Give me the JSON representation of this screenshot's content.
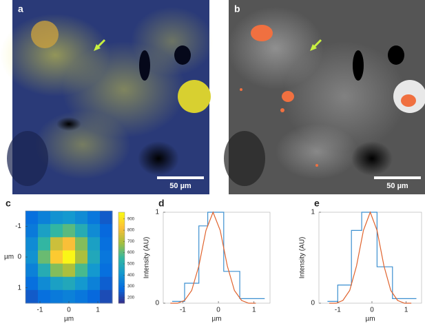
{
  "images": [
    {
      "label": "a",
      "scale_bar": "50 µm"
    },
    {
      "label": "b",
      "scale_bar": "50 µm"
    }
  ],
  "chart_data": [
    {
      "type": "heatmap",
      "label": "c",
      "xlabel": "µm",
      "ylabel": "µm",
      "xlim": [
        -1.5,
        1.5
      ],
      "ylim": [
        1.5,
        -1.5
      ],
      "xticks": [
        -1,
        0,
        1
      ],
      "yticks": [
        -1,
        0,
        1
      ],
      "values": [
        [
          300,
          350,
          400,
          420,
          380,
          320,
          250
        ],
        [
          330,
          450,
          550,
          600,
          500,
          380,
          280
        ],
        [
          380,
          550,
          750,
          820,
          650,
          450,
          300
        ],
        [
          400,
          620,
          850,
          950,
          700,
          480,
          320
        ],
        [
          350,
          500,
          650,
          700,
          580,
          420,
          300
        ],
        [
          300,
          380,
          450,
          480,
          420,
          350,
          260
        ],
        [
          250,
          300,
          330,
          350,
          320,
          280,
          220
        ]
      ],
      "clim": [
        150,
        960
      ],
      "colorbar_ticks": [
        200,
        300,
        400,
        500,
        600,
        700,
        800,
        900
      ]
    },
    {
      "type": "line",
      "label": "d",
      "xlabel": "µm",
      "ylabel": "Intensity (AU)",
      "xlim": [
        -1.55,
        1.45
      ],
      "ylim": [
        0,
        1
      ],
      "xticks": [
        -1,
        0,
        1
      ],
      "yticks": [
        0,
        1
      ],
      "series": [
        {
          "color": "#3b8fd0",
          "x": [
            -1.3,
            -0.95,
            -0.95,
            -0.55,
            -0.55,
            -0.3,
            -0.3,
            0.15,
            0.15,
            0.6,
            0.6,
            1.3
          ],
          "values": [
            0.02,
            0.02,
            0.22,
            0.22,
            0.85,
            0.85,
            1,
            1,
            0.35,
            0.35,
            0.05,
            0.05
          ]
        },
        {
          "color": "#e0622c",
          "x": [
            -1.35,
            -1.15,
            -0.95,
            -0.75,
            -0.55,
            -0.35,
            -0.15,
            0.05,
            0.25,
            0.45,
            0.65,
            0.85,
            1.05
          ],
          "values": [
            0,
            0,
            0.03,
            0.14,
            0.41,
            0.8,
            1,
            0.8,
            0.41,
            0.14,
            0.03,
            0,
            0
          ]
        }
      ]
    },
    {
      "type": "line",
      "label": "e",
      "xlabel": "µm",
      "ylabel": "Intensity (AU)",
      "xlim": [
        -1.55,
        1.45
      ],
      "ylim": [
        0,
        1
      ],
      "xticks": [
        -1,
        0,
        1
      ],
      "yticks": [
        0,
        1
      ],
      "series": [
        {
          "color": "#3b8fd0",
          "x": [
            -1.3,
            -1,
            -1,
            -0.6,
            -0.6,
            -0.3,
            -0.3,
            0.15,
            0.15,
            0.6,
            0.6,
            1.3
          ],
          "values": [
            0.02,
            0.02,
            0.2,
            0.2,
            0.8,
            0.8,
            1,
            1,
            0.4,
            0.4,
            0.05,
            0.05
          ]
        },
        {
          "color": "#e0622c",
          "x": [
            -1.25,
            -1.05,
            -0.85,
            -0.65,
            -0.45,
            -0.25,
            -0.05,
            0.15,
            0.35,
            0.55,
            0.75,
            0.95,
            1.15
          ],
          "values": [
            0,
            0,
            0.03,
            0.14,
            0.41,
            0.8,
            1,
            0.8,
            0.41,
            0.14,
            0.03,
            0,
            0
          ]
        }
      ]
    }
  ]
}
